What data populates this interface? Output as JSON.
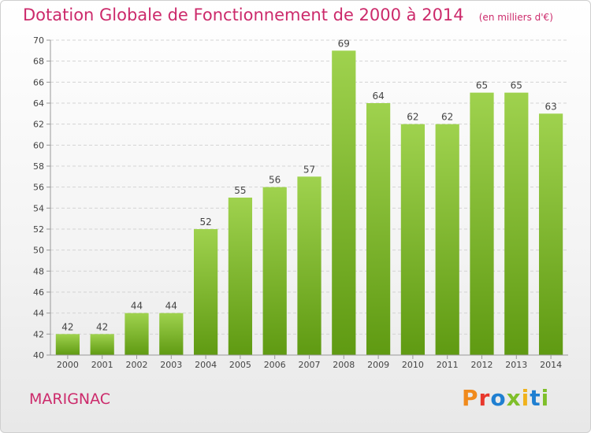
{
  "header": {
    "title": "Dotation Globale de Fonctionnement de 2000 à 2014",
    "subtitle": "(en milliers d'€)"
  },
  "footer": {
    "place": "MARIGNAC",
    "brand": "Proxiti"
  },
  "colors": {
    "title": "#cc2a6b",
    "bar_light": "#9fd24e",
    "bar_dark": "#5f9a12",
    "brand": [
      "#f08a1c",
      "#e8372c",
      "#1f7fd1",
      "#7fbf2a",
      "#f0b21c",
      "#1f7fd1",
      "#7fbf2a"
    ]
  },
  "chart_data": {
    "type": "bar",
    "title": "Dotation Globale de Fonctionnement de 2000 à 2014",
    "subtitle": "(en milliers d'€)",
    "xlabel": "",
    "ylabel": "",
    "categories": [
      "2000",
      "2001",
      "2002",
      "2003",
      "2004",
      "2005",
      "2006",
      "2007",
      "2008",
      "2009",
      "2010",
      "2011",
      "2012",
      "2013",
      "2014"
    ],
    "values": [
      42,
      42,
      44,
      44,
      52,
      55,
      56,
      57,
      69,
      64,
      62,
      62,
      65,
      65,
      63
    ],
    "ylim": [
      40,
      70
    ],
    "yticks": [
      40,
      42,
      44,
      46,
      48,
      50,
      52,
      54,
      56,
      58,
      60,
      62,
      64,
      66,
      68,
      70
    ],
    "grid": true,
    "data_labels": true
  }
}
